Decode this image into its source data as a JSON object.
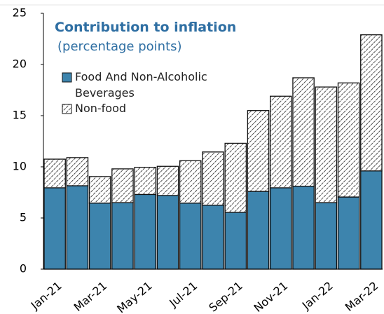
{
  "chart_data": {
    "type": "bar",
    "stacked": true,
    "title": "Contribution to inflation",
    "subtitle": "(percentage points)",
    "categories": [
      "Jan-21",
      null,
      "Mar-21",
      null,
      "May-21",
      null,
      "Jul-21",
      null,
      "Sep-21",
      null,
      "Nov-21",
      null,
      "Jan-22",
      null,
      "Mar-22"
    ],
    "series": [
      {
        "name": "Food And Non-Alcoholic Beverages",
        "color": "#3d84ad",
        "values": [
          7.95,
          8.15,
          6.45,
          6.5,
          7.3,
          7.2,
          6.45,
          6.25,
          5.55,
          7.6,
          7.95,
          8.1,
          6.5,
          7.05,
          9.6
        ]
      },
      {
        "name": "Non-food",
        "color": "hatch",
        "values": [
          2.8,
          2.75,
          2.6,
          3.3,
          2.65,
          2.85,
          4.15,
          5.2,
          6.75,
          7.9,
          8.95,
          10.6,
          11.3,
          11.15,
          13.3
        ]
      }
    ],
    "ylim": [
      0,
      25
    ],
    "yticks": [
      0,
      5,
      10,
      15,
      20,
      25
    ]
  }
}
